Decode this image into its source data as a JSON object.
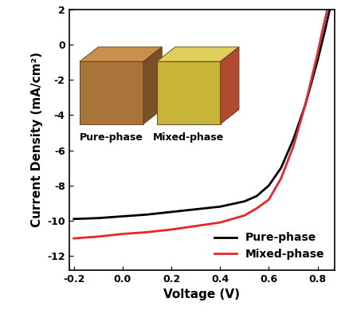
{
  "chart_data": {
    "type": "line",
    "x_label": "Voltage (V)",
    "y_label": "Current Density (mA/cm²)",
    "series": [
      {
        "name": "Pure-phase",
        "color": "#000000",
        "x": [
          -0.2,
          -0.1,
          0.0,
          0.1,
          0.2,
          0.3,
          0.4,
          0.5,
          0.55,
          0.6,
          0.65,
          0.7,
          0.75,
          0.8,
          0.83,
          0.85
        ],
        "values": [
          -9.9,
          -9.85,
          -9.75,
          -9.65,
          -9.5,
          -9.35,
          -9.2,
          -8.9,
          -8.6,
          -8.0,
          -7.0,
          -5.4,
          -3.4,
          -0.9,
          0.8,
          2.0
        ]
      },
      {
        "name": "Mixed-phase",
        "color": "#e8262a",
        "x": [
          -0.2,
          -0.1,
          0.0,
          0.1,
          0.2,
          0.3,
          0.4,
          0.5,
          0.55,
          0.6,
          0.65,
          0.7,
          0.75,
          0.8,
          0.82,
          0.84
        ],
        "values": [
          -11.0,
          -10.9,
          -10.75,
          -10.65,
          -10.5,
          -10.3,
          -10.1,
          -9.7,
          -9.3,
          -8.8,
          -7.6,
          -5.8,
          -3.4,
          -0.5,
          0.8,
          2.0
        ]
      }
    ],
    "annotations": [
      "Pure-phase",
      "Mixed-phase"
    ],
    "xlim": [
      -0.22,
      0.87
    ],
    "xticks": [
      -0.2,
      {
        "value": 0,
        "label": "0.0"
      },
      0.2,
      0.4,
      0.6,
      0.8
    ],
    "ylim": [
      -12.8,
      2
    ],
    "yticks": [
      -12,
      -10,
      -8,
      -6,
      -4,
      -2,
      0,
      2
    ],
    "legend": "lower right",
    "grid": false
  }
}
